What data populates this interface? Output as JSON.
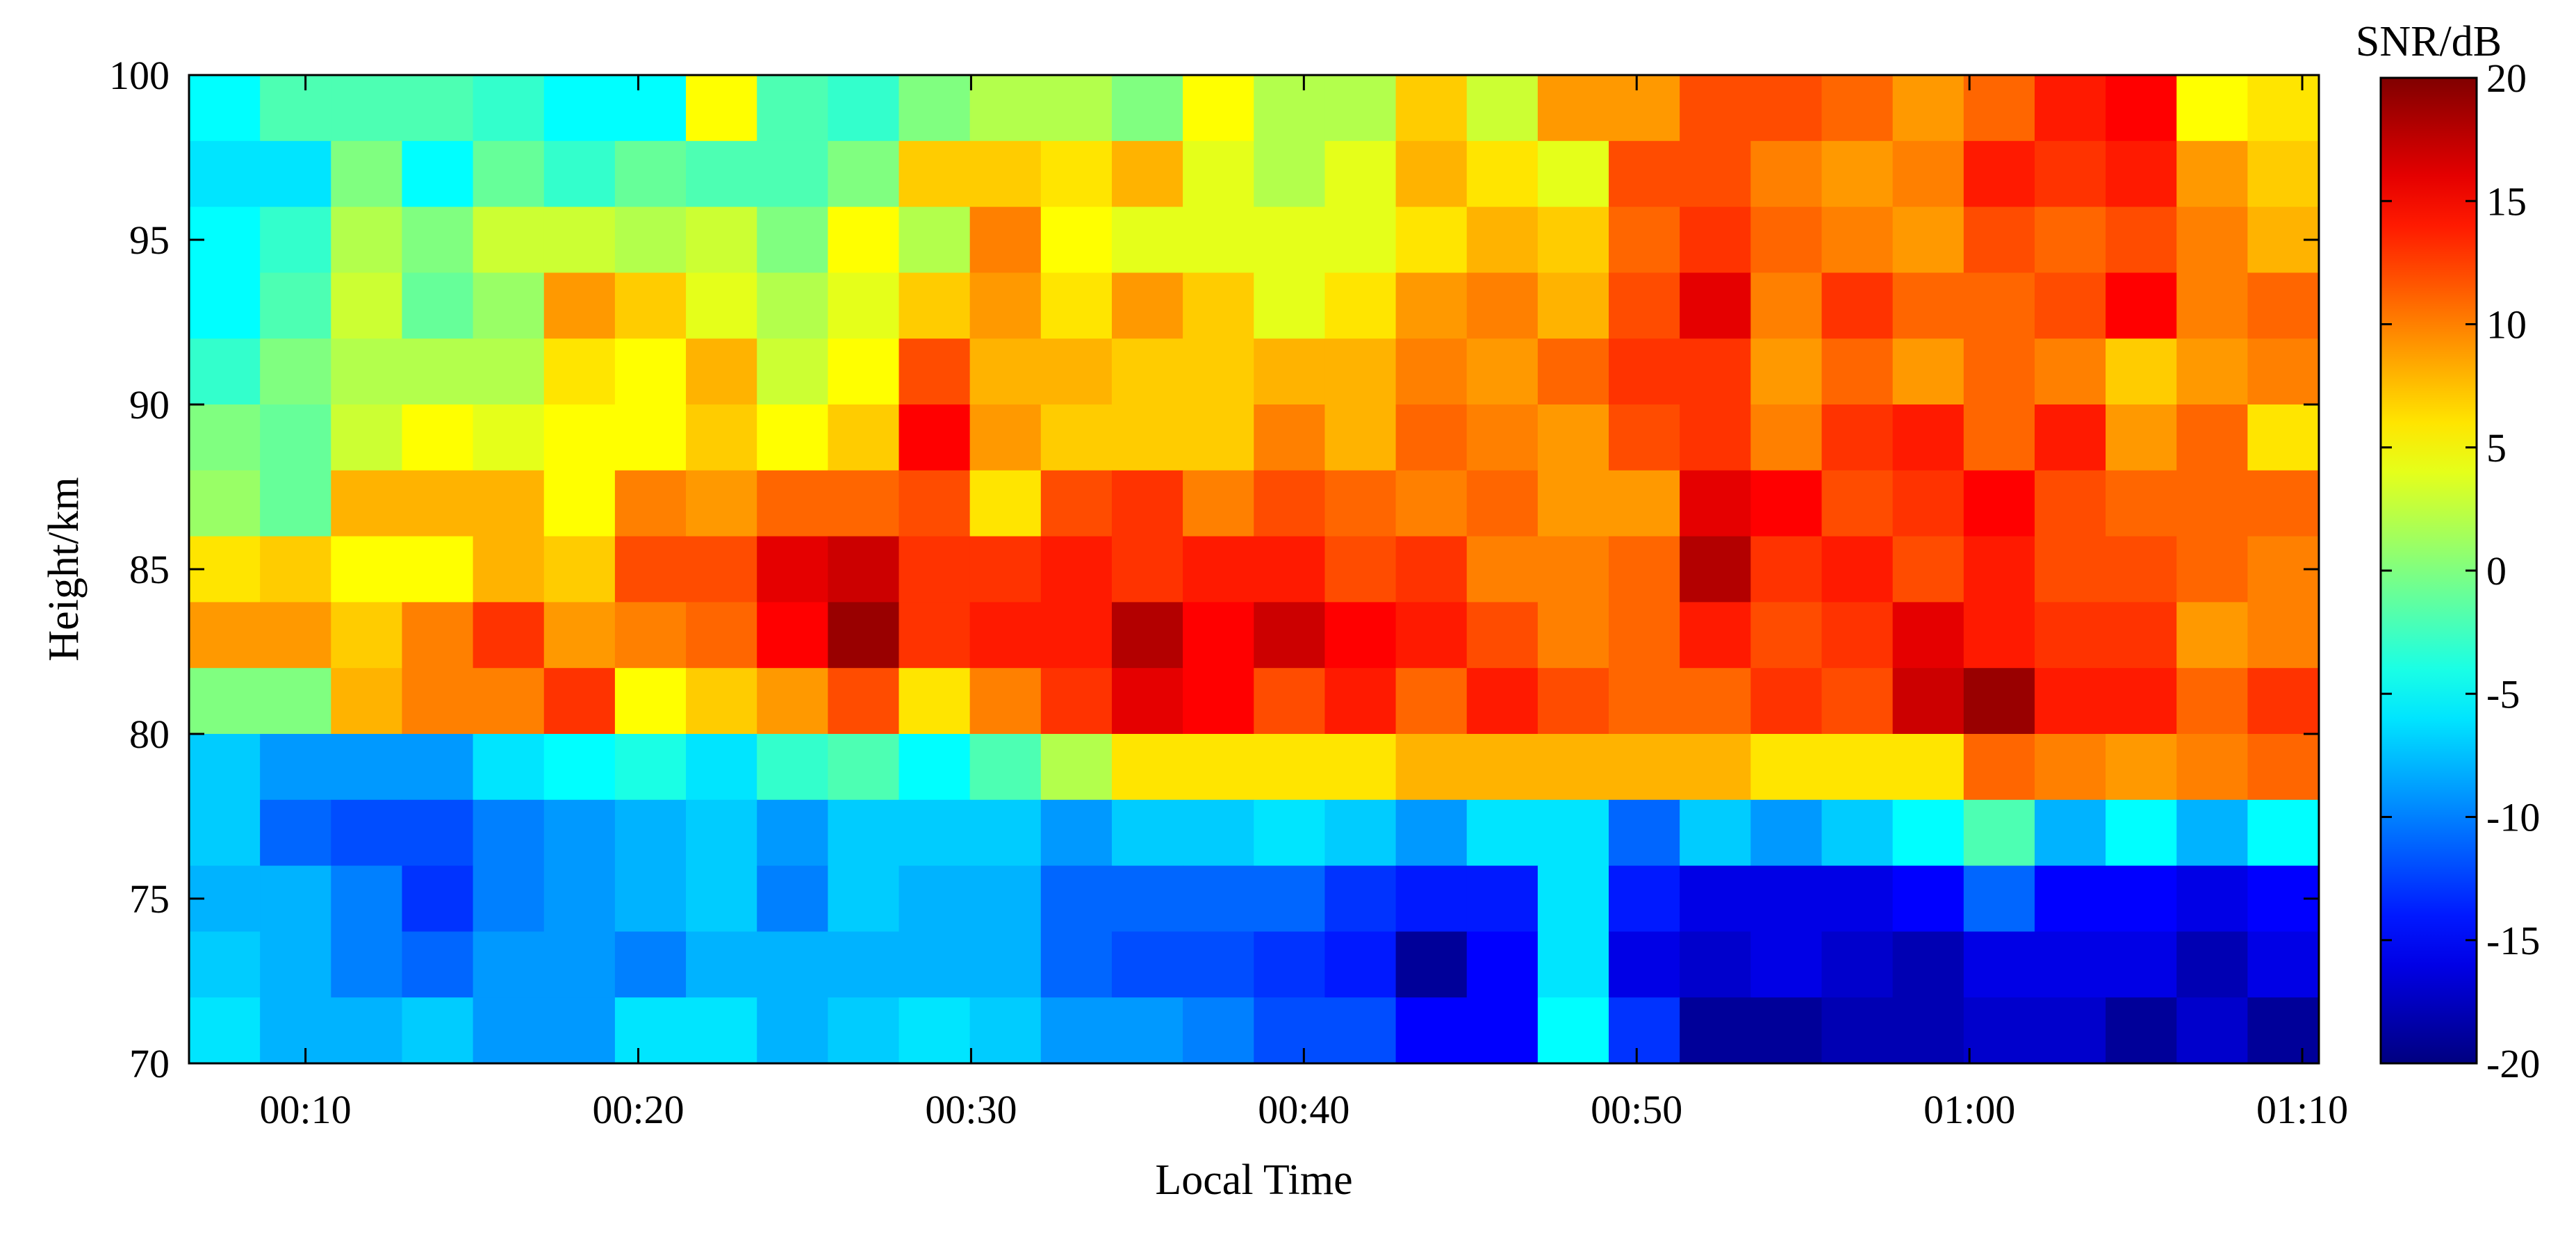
{
  "chart_data": {
    "type": "heatmap",
    "title": "",
    "xlabel": "Local Time",
    "ylabel": "Height/km",
    "colorbar_label": "SNR/dB",
    "x_tick_labels": [
      "00:10",
      "00:20",
      "00:30",
      "00:40",
      "00:50",
      "01:00",
      "01:10"
    ],
    "x_tick_minutes": [
      10,
      20,
      30,
      40,
      50,
      60,
      70
    ],
    "y_ticks": [
      70,
      75,
      80,
      85,
      90,
      95,
      100
    ],
    "colorbar_ticks": [
      20,
      15,
      10,
      5,
      0,
      -5,
      -10,
      -15,
      -20
    ],
    "colorbar_tick_labels": [
      "20",
      "15",
      "10",
      "5",
      "0",
      "-5",
      "-10",
      "-15",
      "-20"
    ],
    "xlim_minutes": [
      6.5,
      70.5
    ],
    "ylim": [
      70,
      100
    ],
    "clim": [
      -20,
      20
    ],
    "colormap": "jet",
    "cell_x_start_minutes": 6.5,
    "cell_x_step_minutes": 2.133,
    "cell_y_start_km": 70,
    "cell_y_step_km": 2,
    "rows_from_top_km": [
      99,
      97,
      95,
      93,
      91,
      89,
      87,
      85,
      83,
      81,
      79,
      77,
      75,
      73,
      71
    ],
    "values": [
      [
        -5,
        -2,
        -2,
        -2,
        -3,
        -5,
        -5,
        5,
        -2,
        -3,
        0,
        2,
        2,
        0,
        5,
        2,
        2,
        7,
        3,
        9,
        9,
        12,
        12,
        11,
        9,
        11,
        14,
        15,
        5,
        6
      ],
      [
        -6,
        -6,
        0,
        -5,
        -1,
        -3,
        -1,
        -2,
        -2,
        0,
        7,
        7,
        6,
        8,
        4,
        2,
        4,
        8,
        6,
        4,
        12,
        12,
        10,
        9,
        10,
        14,
        13,
        14,
        9,
        7
      ],
      [
        -5,
        -3,
        2,
        0,
        3,
        3,
        2,
        3,
        0,
        5,
        2,
        10,
        5,
        4,
        4,
        4,
        4,
        6,
        8,
        7,
        11,
        13,
        11,
        10,
        9,
        12,
        11,
        12,
        10,
        8
      ],
      [
        -5,
        -2,
        3,
        -1,
        1,
        9,
        7,
        4,
        2,
        4,
        7,
        9,
        6,
        9,
        7,
        4,
        6,
        9,
        10,
        8,
        12,
        16,
        10,
        13,
        11,
        11,
        12,
        15,
        10,
        11
      ],
      [
        -3,
        0,
        2,
        2,
        2,
        6,
        5,
        8,
        3,
        5,
        12,
        8,
        8,
        7,
        7,
        8,
        8,
        10,
        9,
        11,
        13,
        13,
        9,
        11,
        9,
        11,
        10,
        7,
        9,
        10
      ],
      [
        0,
        -1,
        3,
        5,
        4,
        5,
        5,
        7,
        5,
        7,
        15,
        9,
        7,
        7,
        7,
        10,
        8,
        11,
        10,
        9,
        12,
        13,
        10,
        13,
        14,
        11,
        14,
        9,
        11,
        6
      ],
      [
        1,
        -1,
        8,
        8,
        8,
        5,
        10,
        9,
        11,
        11,
        12,
        6,
        12,
        13,
        10,
        12,
        11,
        10,
        11,
        9,
        9,
        16,
        15,
        12,
        13,
        15,
        12,
        11,
        11,
        11
      ],
      [
        6,
        7,
        5,
        5,
        8,
        7,
        12,
        12,
        16,
        17,
        13,
        13,
        14,
        13,
        14,
        14,
        12,
        13,
        10,
        10,
        11,
        18,
        13,
        14,
        12,
        14,
        12,
        12,
        11,
        10
      ],
      [
        9,
        9,
        7,
        10,
        13,
        9,
        10,
        11,
        15,
        19,
        13,
        14,
        14,
        18,
        15,
        17,
        15,
        14,
        12,
        10,
        11,
        14,
        12,
        13,
        16,
        14,
        13,
        13,
        9,
        10
      ],
      [
        0,
        0,
        8,
        10,
        10,
        13,
        5,
        7,
        9,
        12,
        6,
        10,
        13,
        16,
        15,
        12,
        14,
        11,
        14,
        12,
        11,
        11,
        13,
        12,
        17,
        19,
        14,
        14,
        11,
        13
      ],
      [
        -7,
        -9,
        -9,
        -9,
        -6,
        -5,
        -4,
        -6,
        -3,
        -2,
        -5,
        -2,
        2,
        6,
        6,
        6,
        6,
        8,
        8,
        8,
        8,
        8,
        6,
        6,
        6,
        11,
        10,
        9,
        10,
        11
      ],
      [
        -7,
        -11,
        -12,
        -12,
        -10,
        -9,
        -8,
        -7,
        -9,
        -7,
        -7,
        -7,
        -9,
        -7,
        -7,
        -6,
        -7,
        -9,
        -6,
        -6,
        -11,
        -7,
        -9,
        -7,
        -5,
        -2,
        -8,
        -5,
        -8,
        -5
      ],
      [
        -8,
        -8,
        -10,
        -13,
        -10,
        -9,
        -8,
        -7,
        -10,
        -7,
        -8,
        -8,
        -11,
        -11,
        -11,
        -11,
        -13,
        -14,
        -14,
        -6,
        -14,
        -16,
        -16,
        -16,
        -15,
        -11,
        -15,
        -15,
        -16,
        -15
      ],
      [
        -7,
        -8,
        -10,
        -11,
        -9,
        -9,
        -10,
        -8,
        -8,
        -8,
        -8,
        -8,
        -11,
        -12,
        -12,
        -13,
        -14,
        -19,
        -15,
        -6,
        -16,
        -17,
        -16,
        -17,
        -18,
        -16,
        -16,
        -16,
        -18,
        -16
      ],
      [
        -6,
        -8,
        -8,
        -7,
        -9,
        -9,
        -6,
        -6,
        -8,
        -7,
        -6,
        -7,
        -9,
        -9,
        -10,
        -12,
        -12,
        -15,
        -15,
        -5,
        -13,
        -19,
        -19,
        -18,
        -18,
        -17,
        -17,
        -19,
        -17,
        -19
      ]
    ]
  }
}
